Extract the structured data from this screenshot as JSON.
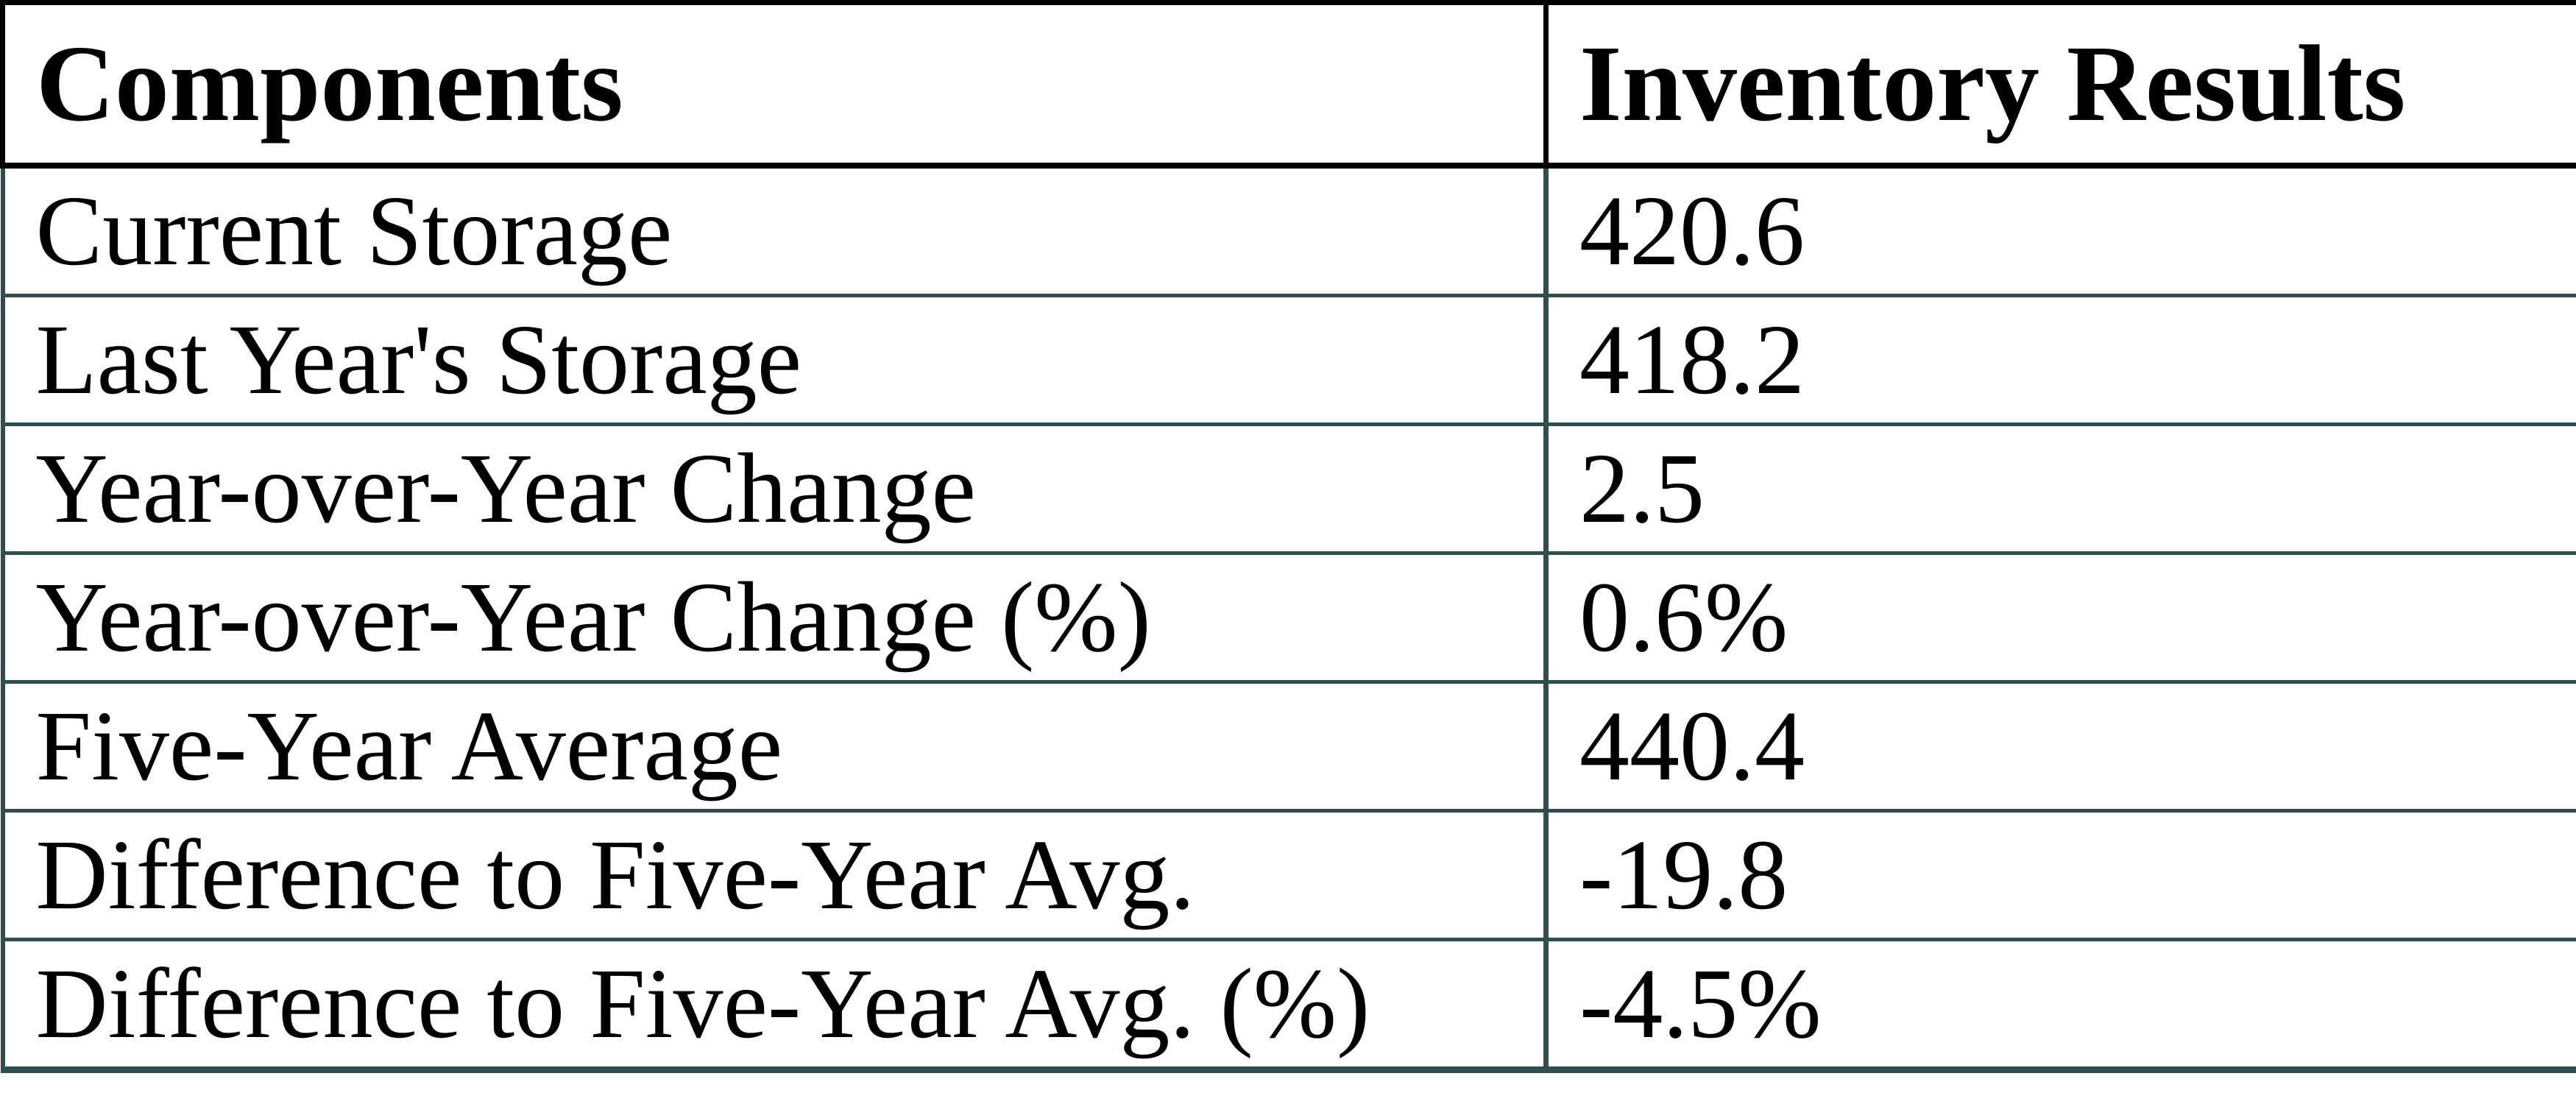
{
  "chart_data": {
    "type": "table",
    "columns": [
      "Components",
      "Inventory Results"
    ],
    "rows": [
      [
        "Current Storage",
        "420.6"
      ],
      [
        "Last Year's Storage",
        "418.2"
      ],
      [
        "Year-over-Year Change",
        "2.5"
      ],
      [
        "Year-over-Year Change (%)",
        "0.6%"
      ],
      [
        "Five-Year Average",
        "440.4"
      ],
      [
        "Difference to Five-Year Avg.",
        "-19.8"
      ],
      [
        "Difference to Five-Year Avg. (%)",
        "-4.5%"
      ]
    ]
  },
  "table": {
    "header": {
      "components_label": "Components",
      "results_label": "Inventory Results"
    },
    "rows": [
      {
        "component": "Current Storage",
        "result": "420.6"
      },
      {
        "component": "Last Year's Storage",
        "result": "418.2"
      },
      {
        "component": "Year-over-Year Change",
        "result": "2.5"
      },
      {
        "component": "Year-over-Year Change (%)",
        "result": "0.6%"
      },
      {
        "component": "Five-Year Average",
        "result": "440.4"
      },
      {
        "component": "Difference to Five-Year Avg.",
        "result": "-19.8"
      },
      {
        "component": "Difference to Five-Year Avg. (%)",
        "result": "-4.5%"
      }
    ],
    "colors": {
      "header_border": "#000000",
      "grid_border": "#2F4F4F",
      "text": "#000000",
      "background": "#FFFFFF"
    }
  }
}
